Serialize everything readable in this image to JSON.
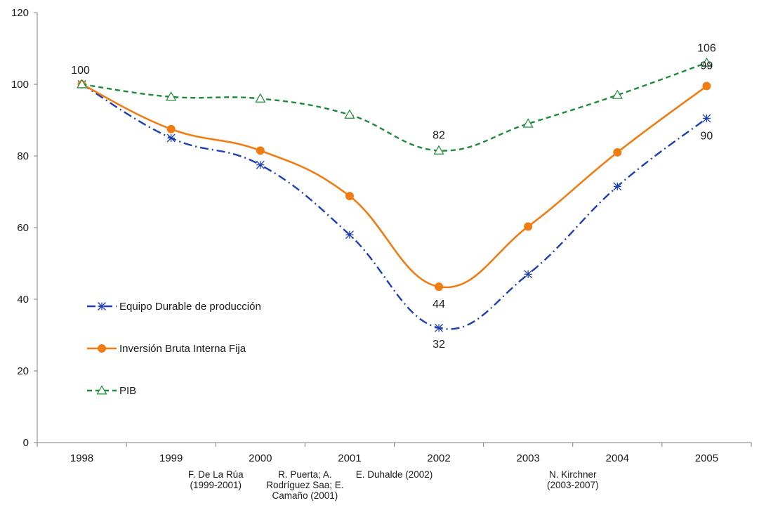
{
  "chart_data": {
    "type": "line",
    "title": "",
    "xlabel": "",
    "ylabel": "",
    "x": [
      "1998",
      "1999",
      "2000",
      "2001",
      "2002",
      "2003",
      "2004",
      "2005"
    ],
    "ylim": [
      0,
      120
    ],
    "yticks": [
      "0",
      "20",
      "40",
      "60",
      "80",
      "100",
      "120"
    ],
    "grid": false,
    "legend_position": "left",
    "series": [
      {
        "name": "Equipo Durable de producción",
        "values": [
          100,
          85,
          77.5,
          58,
          32,
          47,
          71.5,
          90.5
        ],
        "color": "#1f3fb0",
        "line_style": "dash-dot",
        "marker": "asterisk",
        "labels": {
          "4": "32",
          "7": "90"
        }
      },
      {
        "name": "Inversión Bruta Interna Fija",
        "values": [
          100,
          87.5,
          81.5,
          68.8,
          43.5,
          60.3,
          81,
          99.5
        ],
        "color": "#f07d14",
        "line_style": "solid",
        "marker": "circle",
        "labels": {
          "4": "44",
          "7": "99"
        }
      },
      {
        "name": "PIB",
        "values": [
          100,
          96.5,
          96,
          91.5,
          81.5,
          89,
          97,
          106
        ],
        "color": "#1e8a3c",
        "line_style": "dashed",
        "marker": "triangle",
        "labels": {
          "0": "100",
          "4": "82",
          "7": "106"
        }
      }
    ],
    "annotations": [
      {
        "x_between": [
          "1999",
          "2000"
        ],
        "lines": [
          "F. De La Rúa",
          "(1999-2001)"
        ]
      },
      {
        "x_between": [
          "2000",
          "2001"
        ],
        "lines": [
          "R. Puerta; A.",
          "Rodríguez Saa; E.",
          "Camaño (2001)"
        ]
      },
      {
        "x_between": [
          "2001",
          "2002"
        ],
        "lines": [
          "E. Duhalde (2002)"
        ]
      },
      {
        "x_between": [
          "2003",
          "2004"
        ],
        "lines": [
          "N. Kirchner",
          "(2003-2007)"
        ]
      }
    ]
  }
}
